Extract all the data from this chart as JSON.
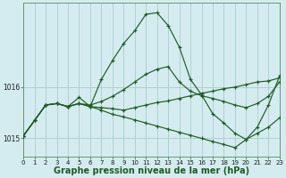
{
  "background_color": "#d4ecf0",
  "grid_color": "#a8cccc",
  "line_color": "#1f5c1f",
  "xlabel": "Graphe pression niveau de la mer (hPa)",
  "xlabel_fontsize": 7,
  "xticks": [
    0,
    1,
    2,
    3,
    4,
    5,
    6,
    7,
    8,
    9,
    10,
    11,
    12,
    13,
    14,
    15,
    16,
    17,
    18,
    19,
    20,
    21,
    22,
    23
  ],
  "yticks": [
    1015.0,
    1016.0
  ],
  "ylim": [
    1014.65,
    1017.65
  ],
  "xlim": [
    0,
    23
  ],
  "series": [
    [
      1015.05,
      1015.35,
      1015.65,
      1015.68,
      1015.62,
      1015.68,
      1015.62,
      1015.55,
      1015.47,
      1015.42,
      1015.36,
      1015.3,
      1015.24,
      1015.18,
      1015.12,
      1015.06,
      1015.0,
      1014.94,
      1014.88,
      1014.82,
      1014.98,
      1015.1,
      1015.22,
      1015.4
    ],
    [
      1015.05,
      1015.35,
      1015.65,
      1015.68,
      1015.62,
      1015.68,
      1015.62,
      1015.6,
      1015.58,
      1015.55,
      1015.6,
      1015.65,
      1015.7,
      1015.73,
      1015.78,
      1015.83,
      1015.88,
      1015.92,
      1015.97,
      1016.0,
      1016.05,
      1016.1,
      1016.12,
      1016.18
    ],
    [
      1015.05,
      1015.35,
      1015.65,
      1015.68,
      1015.62,
      1015.68,
      1015.65,
      1015.72,
      1015.82,
      1015.95,
      1016.1,
      1016.25,
      1016.35,
      1016.4,
      1016.1,
      1015.92,
      1015.83,
      1015.78,
      1015.72,
      1015.65,
      1015.6,
      1015.68,
      1015.82,
      1016.1
    ],
    [
      1015.05,
      1015.35,
      1015.65,
      1015.68,
      1015.62,
      1015.8,
      1015.62,
      1016.15,
      1016.52,
      1016.85,
      1017.1,
      1017.42,
      1017.45,
      1017.2,
      1016.78,
      1016.15,
      1015.85,
      1015.48,
      1015.3,
      1015.1,
      1014.98,
      1015.22,
      1015.65,
      1016.22
    ]
  ]
}
